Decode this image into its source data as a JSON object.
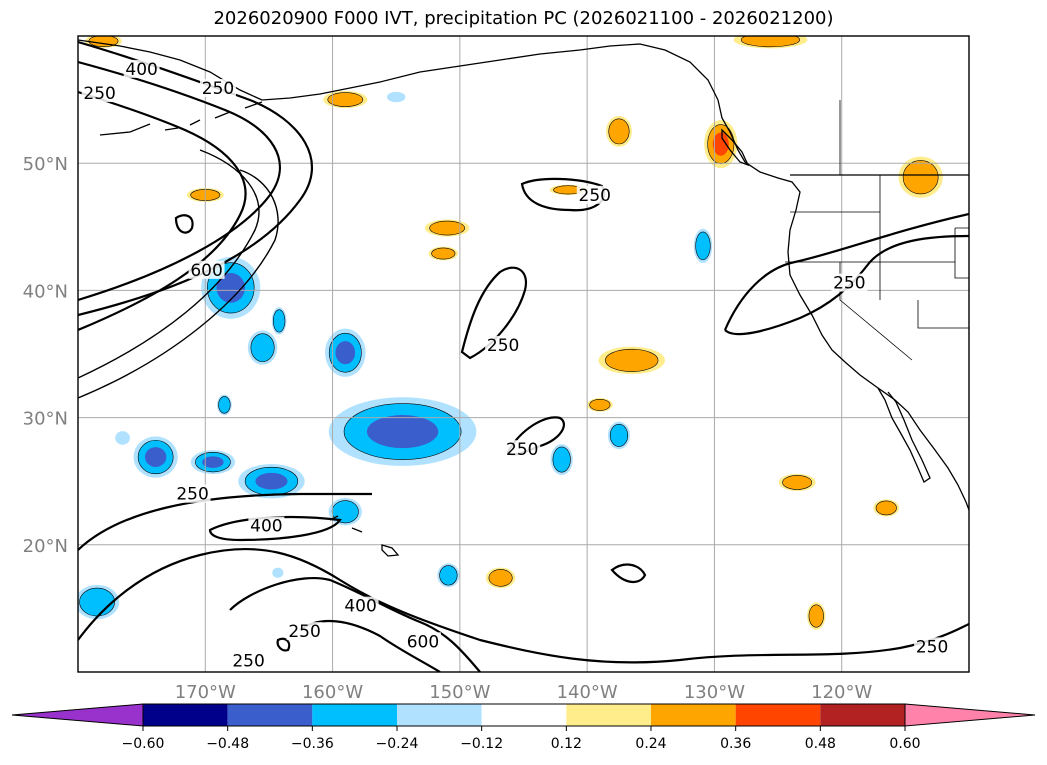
{
  "title": "2026020900 F000 IVT, precipitation PC (2026021100 - 2026021200)",
  "chart_data": {
    "type": "contour-map",
    "title": "2026020900 F000 IVT, precipitation PC (2026021100 - 2026021200)",
    "lon_range": [
      -180,
      -110
    ],
    "lat_range": [
      10,
      60
    ],
    "lat_ticks": [
      {
        "value": 20,
        "label": "20°N"
      },
      {
        "value": 30,
        "label": "30°N"
      },
      {
        "value": 40,
        "label": "40°N"
      },
      {
        "value": 50,
        "label": "50°N"
      }
    ],
    "lon_ticks": [
      {
        "value": -170,
        "label": "170°W"
      },
      {
        "value": -160,
        "label": "160°W"
      },
      {
        "value": -150,
        "label": "150°W"
      },
      {
        "value": -140,
        "label": "140°W"
      },
      {
        "value": -130,
        "label": "130°W"
      },
      {
        "value": -120,
        "label": "120°W"
      }
    ],
    "grid": true,
    "ivt_contour_levels": [
      250,
      400,
      600
    ],
    "contour_labels": [
      {
        "text": "400",
        "lon": -175.0,
        "lat": 57.1
      },
      {
        "text": "250",
        "lon": -178.3,
        "lat": 55.2
      },
      {
        "text": "250",
        "lon": -169.0,
        "lat": 55.6
      },
      {
        "text": "600",
        "lon": -169.9,
        "lat": 41.3
      },
      {
        "text": "250",
        "lon": -139.4,
        "lat": 47.2
      },
      {
        "text": "250",
        "lon": -146.6,
        "lat": 35.4
      },
      {
        "text": "250",
        "lon": -119.4,
        "lat": 40.3
      },
      {
        "text": "250",
        "lon": -145.1,
        "lat": 27.2
      },
      {
        "text": "250",
        "lon": -171.0,
        "lat": 23.7
      },
      {
        "text": "400",
        "lon": -165.2,
        "lat": 21.2
      },
      {
        "text": "250",
        "lon": -162.2,
        "lat": 12.9
      },
      {
        "text": "400",
        "lon": -157.8,
        "lat": 14.9
      },
      {
        "text": "600",
        "lon": -152.9,
        "lat": 12.1
      },
      {
        "text": "250",
        "lon": -166.6,
        "lat": 10.6
      },
      {
        "text": "250",
        "lon": -112.9,
        "lat": 11.7
      }
    ],
    "colorbar": {
      "boundaries": [
        -0.6,
        -0.48,
        -0.36,
        -0.24,
        -0.12,
        0.12,
        0.24,
        0.36,
        0.48,
        0.6
      ],
      "tick_labels": [
        "−0.60",
        "−0.48",
        "−0.36",
        "−0.24",
        "−0.12",
        "0.12",
        "0.24",
        "0.36",
        "0.48",
        "0.60"
      ],
      "colors": [
        "#9932cc",
        "#00008b",
        "#3a5fcd",
        "#00bfff",
        "#b0e2ff",
        "#ffffff",
        "#ffec8b",
        "#ffa500",
        "#ff4500",
        "#b22222",
        "#ff82ab"
      ],
      "extend": "both"
    },
    "precip_pc_areas": [
      {
        "lon": -137.5,
        "lat": 52.5,
        "rlon": 0.7,
        "rlat": 0.9,
        "level": 0.24
      },
      {
        "lon": -129.5,
        "lat": 51.5,
        "rlon": 0.9,
        "rlat": 1.4,
        "level": 0.36
      },
      {
        "lon": -125.6,
        "lat": 59.7,
        "rlon": 2.0,
        "rlat": 0.5,
        "level": 0.24
      },
      {
        "lon": -113.8,
        "lat": 48.9,
        "rlon": 1.2,
        "rlat": 1.2,
        "level": 0.24
      },
      {
        "lon": -151.0,
        "lat": 44.9,
        "rlon": 1.2,
        "rlat": 0.5,
        "level": 0.24
      },
      {
        "lon": -151.3,
        "lat": 42.9,
        "rlon": 0.8,
        "rlat": 0.4,
        "level": 0.24
      },
      {
        "lon": -141.5,
        "lat": 47.9,
        "rlon": 1.0,
        "rlat": 0.3,
        "level": 0.24
      },
      {
        "lon": -136.5,
        "lat": 34.5,
        "rlon": 1.8,
        "rlat": 0.8,
        "level": 0.24
      },
      {
        "lon": -139.0,
        "lat": 31.0,
        "rlon": 0.7,
        "rlat": 0.4,
        "level": 0.24
      },
      {
        "lon": -123.5,
        "lat": 24.9,
        "rlon": 1.0,
        "rlat": 0.5,
        "level": 0.24
      },
      {
        "lon": -116.5,
        "lat": 22.9,
        "rlon": 0.7,
        "rlat": 0.5,
        "level": 0.24
      },
      {
        "lon": -122.0,
        "lat": 14.4,
        "rlon": 0.5,
        "rlat": 0.8,
        "level": 0.24
      },
      {
        "lon": -146.8,
        "lat": 17.4,
        "rlon": 0.8,
        "rlat": 0.6,
        "level": 0.24
      },
      {
        "lon": -170.0,
        "lat": 47.5,
        "rlon": 1.0,
        "rlat": 0.4,
        "level": 0.24
      },
      {
        "lon": -159.0,
        "lat": 55.0,
        "rlon": 1.2,
        "rlat": 0.5,
        "level": 0.24
      },
      {
        "lon": -178.0,
        "lat": 59.6,
        "rlon": 1.0,
        "rlat": 0.4,
        "level": 0.24
      },
      {
        "lon": -168.0,
        "lat": 40.2,
        "rlon": 1.6,
        "rlat": 1.8,
        "level": -0.36
      },
      {
        "lon": -159.0,
        "lat": 35.1,
        "rlon": 1.1,
        "rlat": 1.4,
        "level": -0.36
      },
      {
        "lon": -154.5,
        "lat": 28.9,
        "rlon": 4.0,
        "rlat": 2.0,
        "level": -0.36
      },
      {
        "lon": -173.9,
        "lat": 26.9,
        "rlon": 1.2,
        "rlat": 1.2,
        "level": -0.36
      },
      {
        "lon": -169.4,
        "lat": 26.5,
        "rlon": 1.2,
        "rlat": 0.7,
        "level": -0.36
      },
      {
        "lon": -164.8,
        "lat": 25.0,
        "rlon": 1.8,
        "rlat": 1.0,
        "level": -0.36
      },
      {
        "lon": -165.5,
        "lat": 35.5,
        "rlon": 0.8,
        "rlat": 1.0,
        "level": -0.24
      },
      {
        "lon": -130.9,
        "lat": 43.5,
        "rlon": 0.5,
        "rlat": 1.0,
        "level": -0.24
      },
      {
        "lon": -155.0,
        "lat": 55.2,
        "rlon": 0.5,
        "rlat": 0.3,
        "level": -0.12
      },
      {
        "lon": -178.5,
        "lat": 15.5,
        "rlon": 1.2,
        "rlat": 1.0,
        "level": -0.24
      },
      {
        "lon": -159.0,
        "lat": 22.6,
        "rlon": 0.9,
        "rlat": 0.8,
        "level": -0.24
      },
      {
        "lon": -150.9,
        "lat": 17.6,
        "rlon": 0.6,
        "rlat": 0.7,
        "level": -0.24
      },
      {
        "lon": -137.5,
        "lat": 28.6,
        "rlon": 0.6,
        "rlat": 0.8,
        "level": -0.24
      },
      {
        "lon": -142.0,
        "lat": 26.7,
        "rlon": 0.6,
        "rlat": 0.9,
        "level": -0.24
      },
      {
        "lon": -176.5,
        "lat": 28.4,
        "rlon": 0.4,
        "rlat": 0.4,
        "level": -0.12
      },
      {
        "lon": -164.2,
        "lat": 37.6,
        "rlon": 0.4,
        "rlat": 0.8,
        "level": -0.24
      },
      {
        "lon": -168.5,
        "lat": 31.0,
        "rlon": 0.4,
        "rlat": 0.6,
        "level": -0.24
      },
      {
        "lon": -164.3,
        "lat": 17.8,
        "rlon": 0.3,
        "rlat": 0.3,
        "level": -0.12
      }
    ]
  }
}
